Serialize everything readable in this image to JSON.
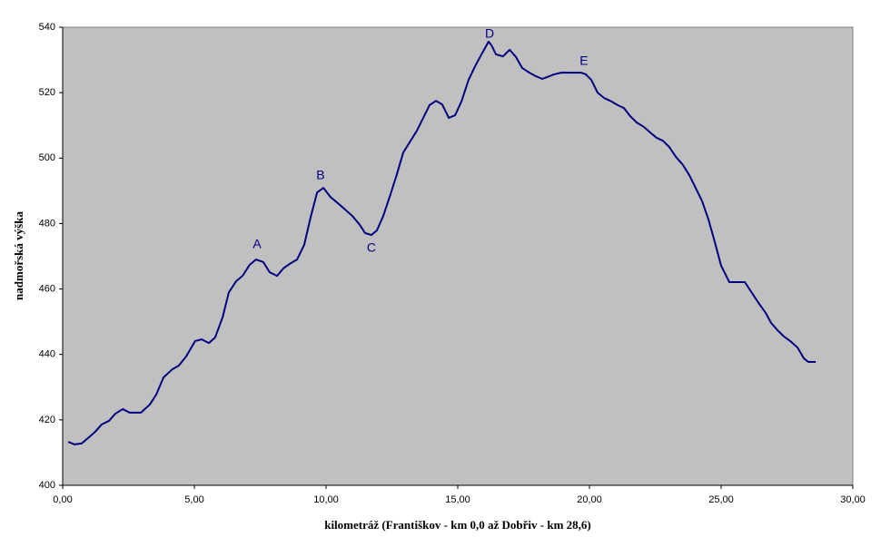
{
  "chart_data": {
    "type": "line",
    "xlabel": "kilometráž (Františkov - km 0,0 až Dobřiv - km 28,6)",
    "ylabel": "nadmořská výška",
    "x": [
      0.21,
      0.45,
      0.72,
      1.0,
      1.24,
      1.48,
      1.76,
      2.0,
      2.28,
      2.55,
      2.97,
      3.31,
      3.55,
      3.83,
      4.17,
      4.41,
      4.69,
      5.03,
      5.28,
      5.55,
      5.79,
      6.07,
      6.31,
      6.59,
      6.83,
      7.1,
      7.34,
      7.62,
      7.86,
      8.14,
      8.38,
      8.66,
      8.9,
      9.17,
      9.41,
      9.66,
      9.9,
      10.17,
      10.45,
      10.72,
      11.0,
      11.28,
      11.48,
      11.72,
      11.93,
      12.17,
      12.45,
      12.69,
      12.93,
      13.21,
      13.45,
      13.69,
      13.93,
      14.17,
      14.41,
      14.66,
      14.9,
      15.14,
      15.41,
      15.66,
      15.9,
      16.17,
      16.28,
      16.45,
      16.72,
      16.97,
      17.21,
      17.45,
      17.72,
      17.97,
      18.21,
      18.41,
      18.66,
      18.93,
      19.34,
      19.69,
      19.86,
      20.07,
      20.31,
      20.55,
      20.79,
      21.07,
      21.31,
      21.55,
      21.79,
      22.07,
      22.31,
      22.55,
      22.79,
      23.03,
      23.28,
      23.55,
      23.79,
      24.03,
      24.28,
      24.52,
      24.76,
      25.0,
      25.31,
      25.9,
      26.17,
      26.45,
      26.69,
      26.9,
      27.14,
      27.38,
      27.62,
      27.9,
      28.14,
      28.31,
      28.59
    ],
    "series": [
      {
        "color": "#000080",
        "values": [
          413.3,
          412.5,
          412.8,
          414.7,
          416.4,
          418.6,
          419.7,
          421.9,
          423.3,
          422.2,
          422.2,
          424.7,
          427.7,
          433,
          435.5,
          436.6,
          439.4,
          444.1,
          444.6,
          443.5,
          445.2,
          451.3,
          459,
          462.4,
          464,
          467.4,
          469,
          468.2,
          465.1,
          464,
          466.3,
          467.9,
          469,
          473.5,
          481.8,
          489.5,
          490.9,
          488.1,
          486.2,
          484.3,
          482.3,
          479.6,
          477.1,
          476.5,
          477.9,
          482.3,
          489,
          495.1,
          501.7,
          505.3,
          508.4,
          512.3,
          516.2,
          517.5,
          516.4,
          512.3,
          513.1,
          517.3,
          523.9,
          528.1,
          531.7,
          535.6,
          534.5,
          531.7,
          531.1,
          533.1,
          530.9,
          527.5,
          526.1,
          525,
          524.2,
          524.8,
          525.6,
          526.1,
          526.1,
          526.1,
          525.6,
          523.9,
          520,
          518.4,
          517.5,
          516.2,
          515.3,
          512.8,
          510.9,
          509.5,
          507.8,
          506.2,
          505.3,
          503.4,
          500.4,
          497.9,
          494.8,
          490.9,
          486.8,
          481.2,
          474.3,
          467.1,
          462.1,
          462.1,
          458.8,
          455.4,
          452.7,
          449.6,
          447.4,
          445.5,
          444.1,
          442.1,
          438.8,
          437.7,
          437.7
        ]
      }
    ],
    "annotations": [
      {
        "text": "A",
        "x": 7.38,
        "y": 473.5
      },
      {
        "text": "B",
        "x": 9.79,
        "y": 494.6
      },
      {
        "text": "C",
        "x": 11.72,
        "y": 472.4
      },
      {
        "text": "D",
        "x": 16.21,
        "y": 537.8
      },
      {
        "text": "E",
        "x": 19.79,
        "y": 529.5
      }
    ],
    "xlim": [
      0,
      30
    ],
    "xticks": [
      {
        "value": 0,
        "label": "0,00"
      },
      {
        "value": 5,
        "label": "5,00"
      },
      {
        "value": 10,
        "label": "10,00"
      },
      {
        "value": 15,
        "label": "15,00"
      },
      {
        "value": 20,
        "label": "20,00"
      },
      {
        "value": 25,
        "label": "25,00"
      },
      {
        "value": 30,
        "label": "30,00"
      }
    ],
    "ylim": [
      400,
      540
    ],
    "yticks": [
      400,
      420,
      440,
      460,
      480,
      500,
      520,
      540
    ],
    "grid": false,
    "background": "#c0c0c0"
  }
}
